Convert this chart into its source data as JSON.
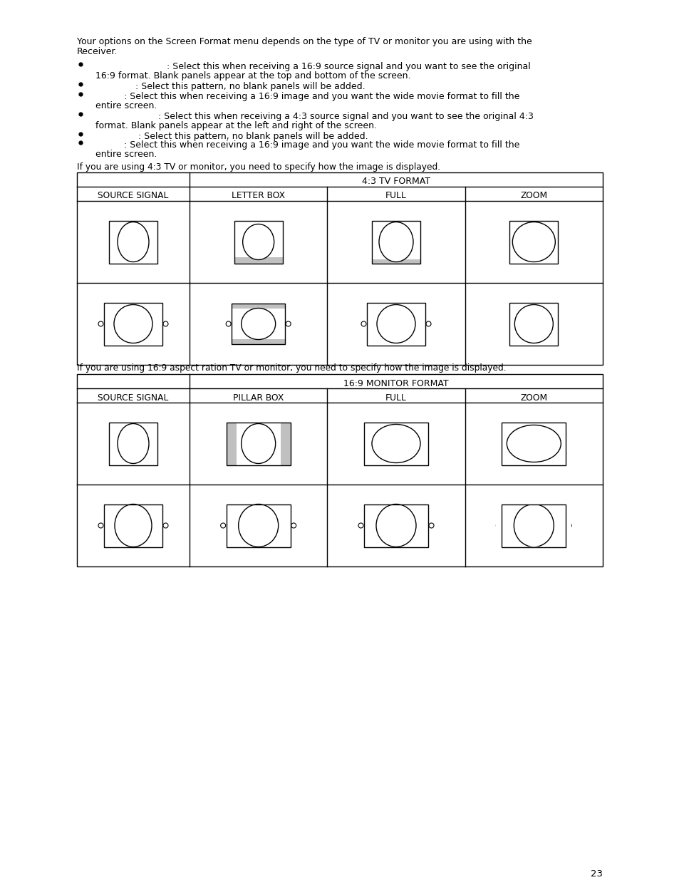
{
  "background_color": "#ffffff",
  "gray_color": "#c0c0c0",
  "table1_caption": "If you are using 4:3 TV or monitor, you need to specify how the image is displayed.",
  "table1_header": "4:3 TV FORMAT",
  "table1_cols": [
    "SOURCE SIGNAL",
    "LETTER BOX",
    "FULL",
    "ZOOM"
  ],
  "table2_caption": "If you are using 16:9 aspect ration TV or monitor, you need to specify how the image is displayed.",
  "table2_header": "16:9 MONITOR FORMAT",
  "table2_cols": [
    "SOURCE SIGNAL",
    "PILLAR BOX",
    "FULL",
    "ZOOM"
  ],
  "page_number": "23",
  "intro_line1": "Your options on the Screen Format menu depends on the type of TV or monitor you are using with the",
  "intro_line2": "Receiver.",
  "bullet1a": "                            : Select this when receiving a 16:9 source signal and you want to see the original",
  "bullet1b": "   16:9 format. Blank panels appear at the top and bottom of the screen.",
  "bullet2": "                 : Select this pattern, no blank panels will be added.",
  "bullet3a": "             : Select this when receiving a 16:9 image and you want the wide movie format to fill the",
  "bullet3b": "   entire screen.",
  "bullet4a": "                         : Select this when receiving a 4:3 source signal and you want to see the original 4:3",
  "bullet4b": "   format. Blank panels appear at the left and right of the screen.",
  "bullet5": "                  : Select this pattern, no blank panels will be added.",
  "bullet6a": "             : Select this when receiving a 16:9 image and you want the wide movie format to fill the",
  "bullet6b": "   entire screen."
}
